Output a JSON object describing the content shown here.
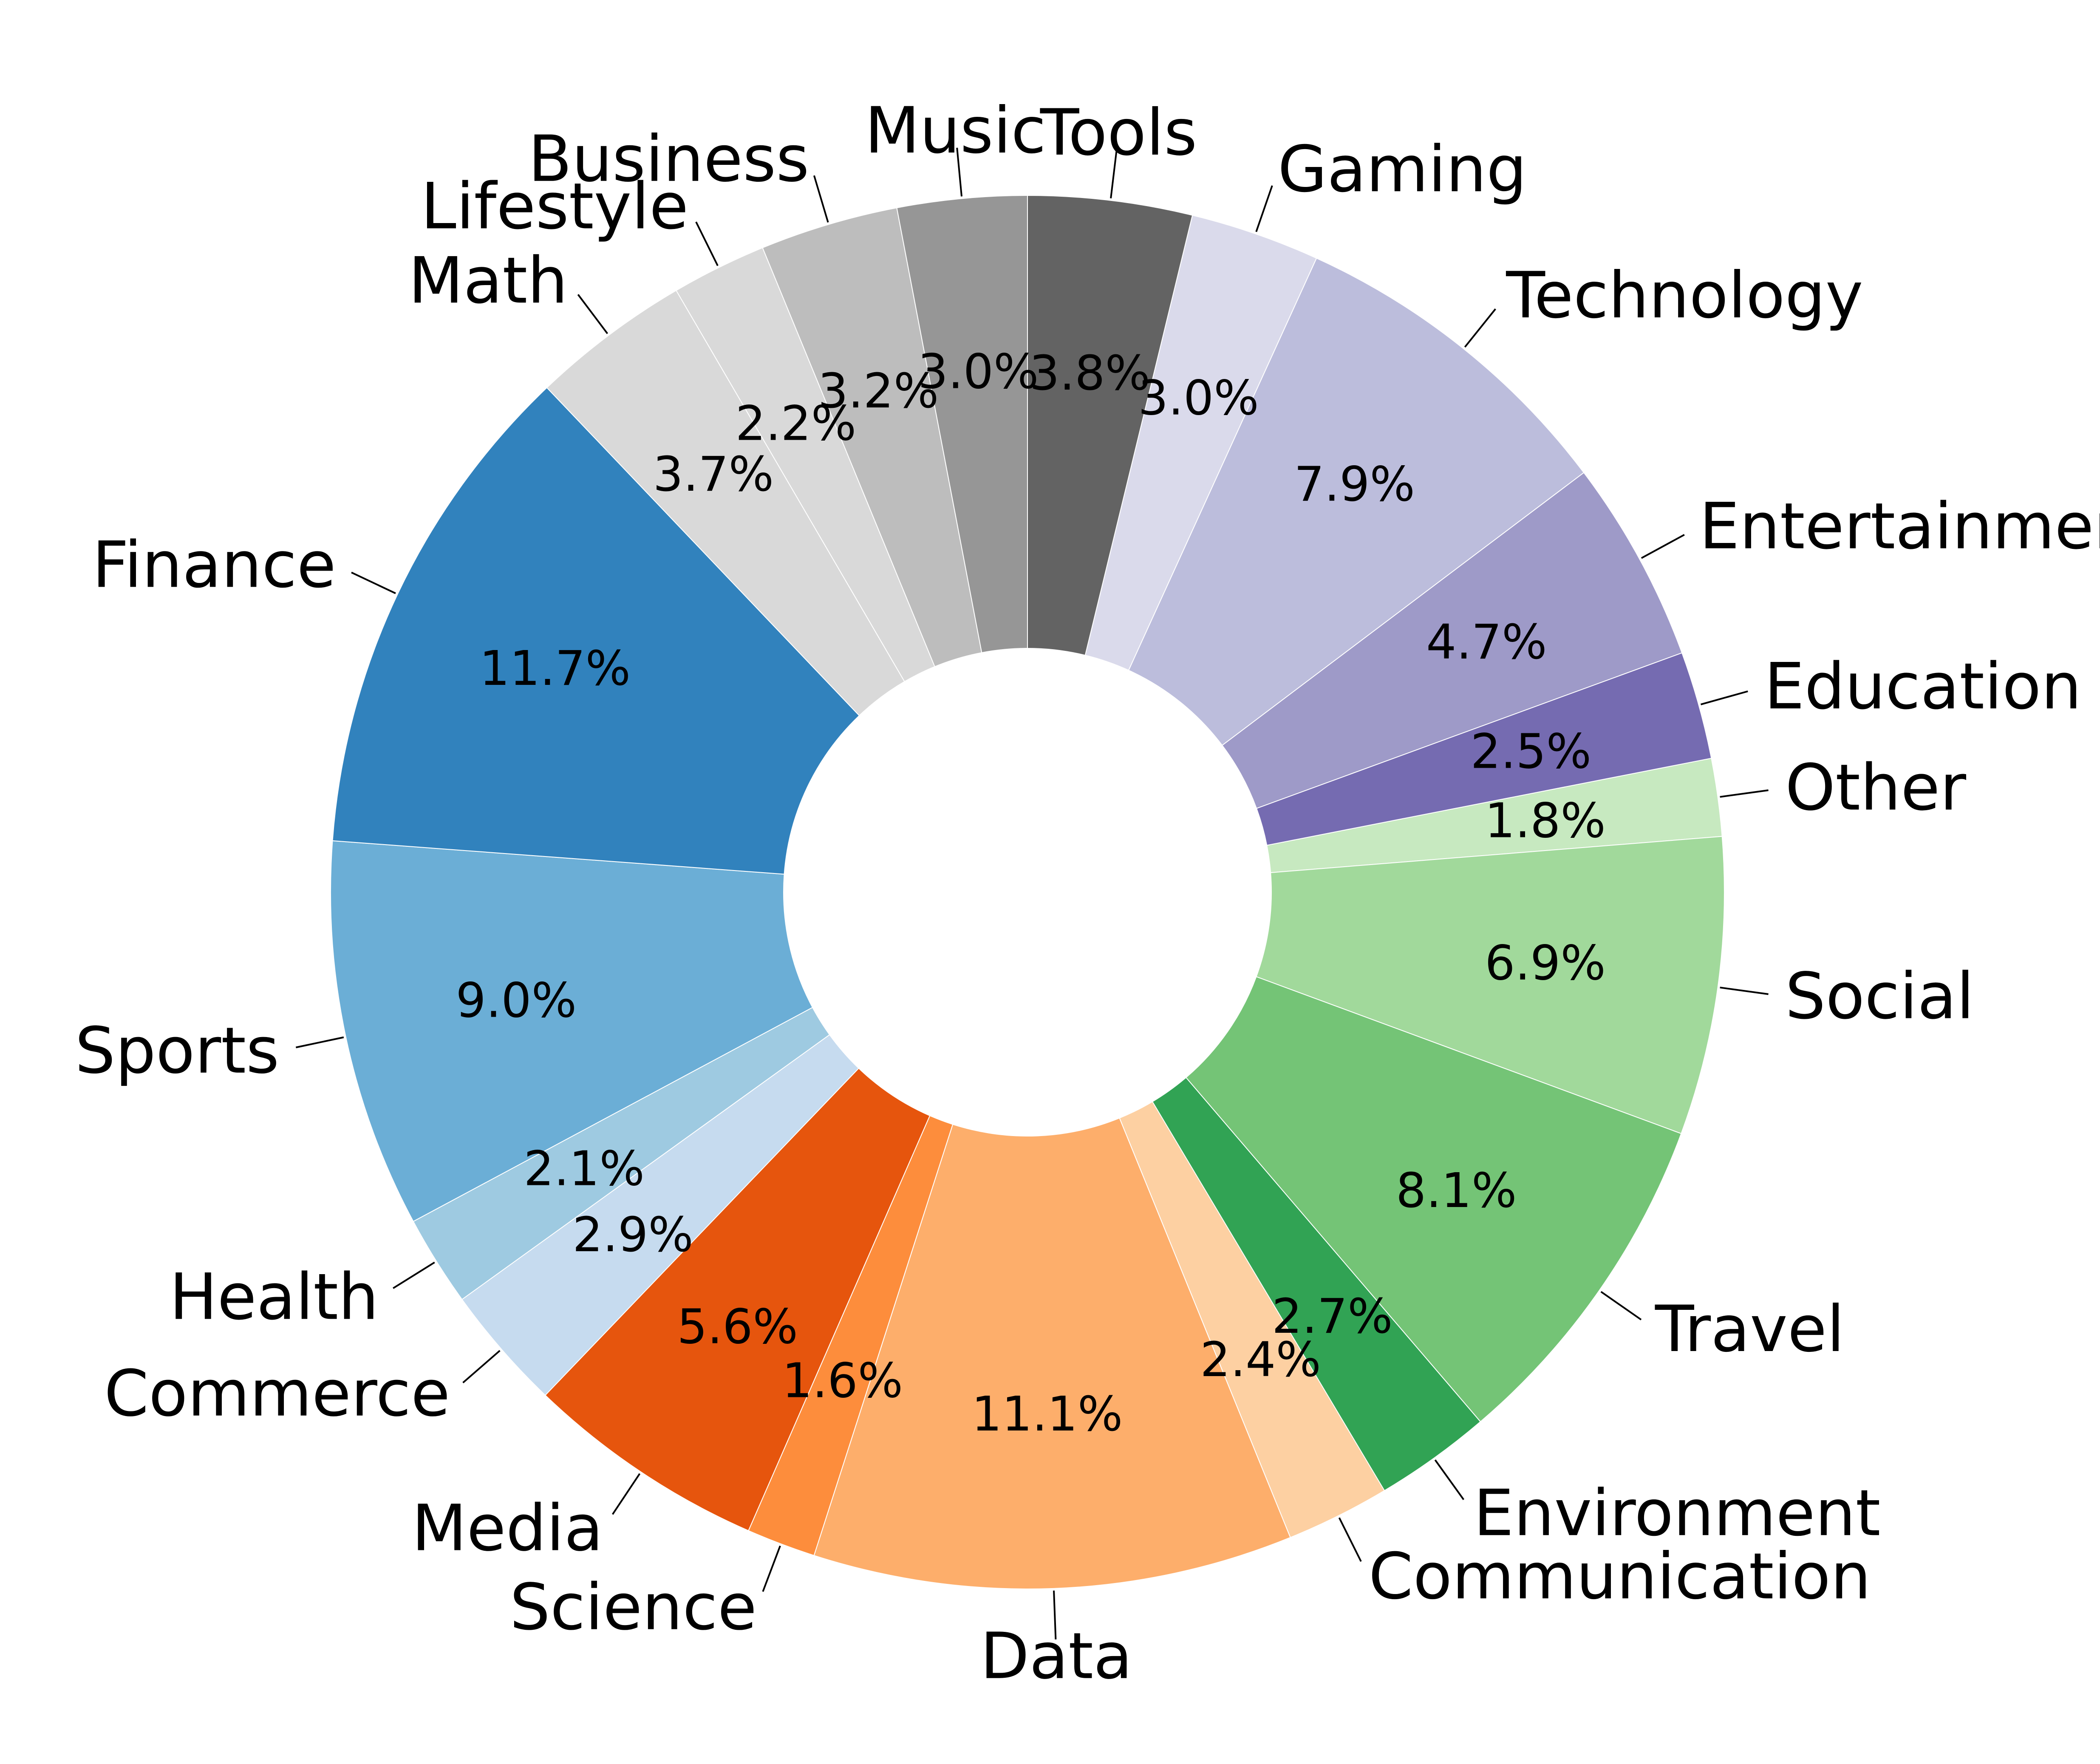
{
  "chart_data": {
    "type": "pie",
    "variant": "donut",
    "start": "top, proceeding clockwise",
    "slices": [
      {
        "label": "Tools",
        "value": 3.8,
        "value_label": "3.8%",
        "color": "#636363"
      },
      {
        "label": "Gaming",
        "value": 3.0,
        "value_label": "3.0%",
        "color": "#dadaeb"
      },
      {
        "label": "Technology",
        "value": 7.9,
        "value_label": "7.9%",
        "color": "#bcbddc"
      },
      {
        "label": "Entertainment",
        "value": 4.7,
        "value_label": "4.7%",
        "color": "#9e9ac8"
      },
      {
        "label": "Education",
        "value": 2.5,
        "value_label": "2.5%",
        "color": "#756bb1"
      },
      {
        "label": "Other",
        "value": 1.8,
        "value_label": "1.8%",
        "color": "#c7e9c0"
      },
      {
        "label": "Social",
        "value": 6.9,
        "value_label": "6.9%",
        "color": "#a1d99b"
      },
      {
        "label": "Travel",
        "value": 8.1,
        "value_label": "8.1%",
        "color": "#74c476"
      },
      {
        "label": "Environment",
        "value": 2.7,
        "value_label": "2.7%",
        "color": "#31a354"
      },
      {
        "label": "Communication",
        "value": 2.4,
        "value_label": "2.4%",
        "color": "#fdd0a2"
      },
      {
        "label": "Data",
        "value": 11.1,
        "value_label": "11.1%",
        "color": "#fdae6b"
      },
      {
        "label": "Science",
        "value": 1.6,
        "value_label": "1.6%",
        "color": "#fd8d3c"
      },
      {
        "label": "Media",
        "value": 5.6,
        "value_label": "5.6%",
        "color": "#e6550d"
      },
      {
        "label": "Commerce",
        "value": 2.9,
        "value_label": "2.9%",
        "color": "#c6dbef"
      },
      {
        "label": "Health",
        "value": 2.1,
        "value_label": "2.1%",
        "color": "#9ecae1"
      },
      {
        "label": "Sports",
        "value": 9.0,
        "value_label": "9.0%",
        "color": "#6baed6"
      },
      {
        "label": "Finance",
        "value": 11.7,
        "value_label": "11.7%",
        "color": "#3182bd"
      },
      {
        "label": "Math",
        "value": 3.7,
        "value_label": "3.7%",
        "color": "#d9d9d9"
      },
      {
        "label": "Lifestyle",
        "value": 2.2,
        "value_label": "2.2%",
        "color": "#d9d9d9"
      },
      {
        "label": "Business",
        "value": 3.2,
        "value_label": "3.2%",
        "color": "#bdbdbd"
      },
      {
        "label": "Music",
        "value": 3.0,
        "value_label": "3.0%",
        "color": "#969696"
      }
    ]
  }
}
